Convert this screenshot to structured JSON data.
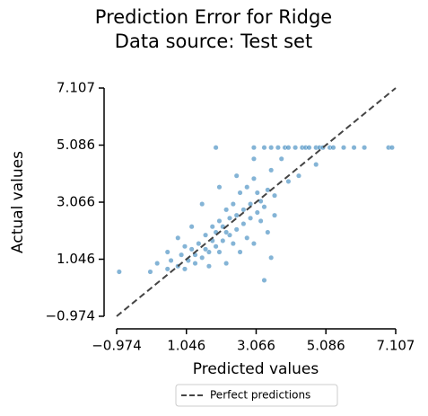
{
  "chart_data": {
    "type": "scatter",
    "title": "Prediction Error for Ridge",
    "subtitle": "Data source: Test set",
    "x_label": "Predicted values",
    "y_label": "Actual values",
    "color": "#1f77b4",
    "x": [
      1.9,
      3.0,
      3.3,
      3.5,
      3.7,
      3.9,
      4.0,
      4.2,
      4.4,
      4.5,
      4.6,
      4.8,
      4.9,
      5.0,
      5.2,
      5.3,
      5.6,
      5.9,
      6.2,
      6.9,
      7.0,
      -0.9,
      0.2,
      0.5,
      0.6,
      0.8,
      0.9,
      1.0,
      1.1,
      1.2,
      1.3,
      1.4,
      1.5,
      1.6,
      1.7,
      1.8,
      1.9,
      2.0,
      2.1,
      2.2,
      2.3,
      2.4,
      2.5,
      2.6,
      2.7,
      2.8,
      2.9,
      3.0,
      3.1,
      3.2,
      3.3,
      3.4,
      3.5,
      3.6,
      3.8,
      4.0,
      4.3,
      4.8,
      1.5,
      2.0,
      2.5,
      3.0,
      1.2,
      0.8,
      2.2,
      2.6,
      3.0,
      3.4,
      3.5,
      2.8,
      1.7,
      0.0,
      0.5,
      1.0,
      2.3,
      2.7,
      1.9,
      2.1,
      2.4,
      3.2,
      3.6,
      1.3,
      1.6,
      1.8,
      2.0,
      3.3,
      2.2,
      2.5,
      2.9,
      3.1
    ],
    "values": [
      5.0,
      5.0,
      5.0,
      5.0,
      5.0,
      5.0,
      5.0,
      5.0,
      5.0,
      5.0,
      5.0,
      5.0,
      5.0,
      5.0,
      5.0,
      5.0,
      5.0,
      5.0,
      5.0,
      5.0,
      5.0,
      0.6,
      0.9,
      0.7,
      1.0,
      0.8,
      1.2,
      0.7,
      1.0,
      1.4,
      0.9,
      1.6,
      1.1,
      1.9,
      1.3,
      2.2,
      1.5,
      2.4,
      1.7,
      2.8,
      1.9,
      3.0,
      2.1,
      3.4,
      2.3,
      3.6,
      2.5,
      3.9,
      2.7,
      3.1,
      2.9,
      3.5,
      4.2,
      3.3,
      4.6,
      3.8,
      4.0,
      4.4,
      3.0,
      3.6,
      4.0,
      4.6,
      2.2,
      1.8,
      0.9,
      1.3,
      1.6,
      2.0,
      1.1,
      1.8,
      0.8,
      0.6,
      1.3,
      1.5,
      2.5,
      2.8,
      2.0,
      2.2,
      1.6,
      2.4,
      2.6,
      1.2,
      1.4,
      1.7,
      1.3,
      0.3,
      2.0,
      2.6,
      3.0,
      3.4
    ],
    "xlim": [
      -0.974,
      7.107
    ],
    "ylim": [
      -0.974,
      7.107
    ],
    "xticks": [
      {
        "value": -0.974,
        "label": "−0.974"
      },
      1.046,
      3.066,
      5.086,
      7.107
    ],
    "yticks": [
      {
        "value": -0.974,
        "label": "−0.974"
      },
      1.046,
      3.066,
      5.086,
      7.107
    ],
    "reference_line": {
      "name": "Perfect predictions",
      "color": "#444444",
      "style": "dashed"
    },
    "legend": "bottom"
  }
}
